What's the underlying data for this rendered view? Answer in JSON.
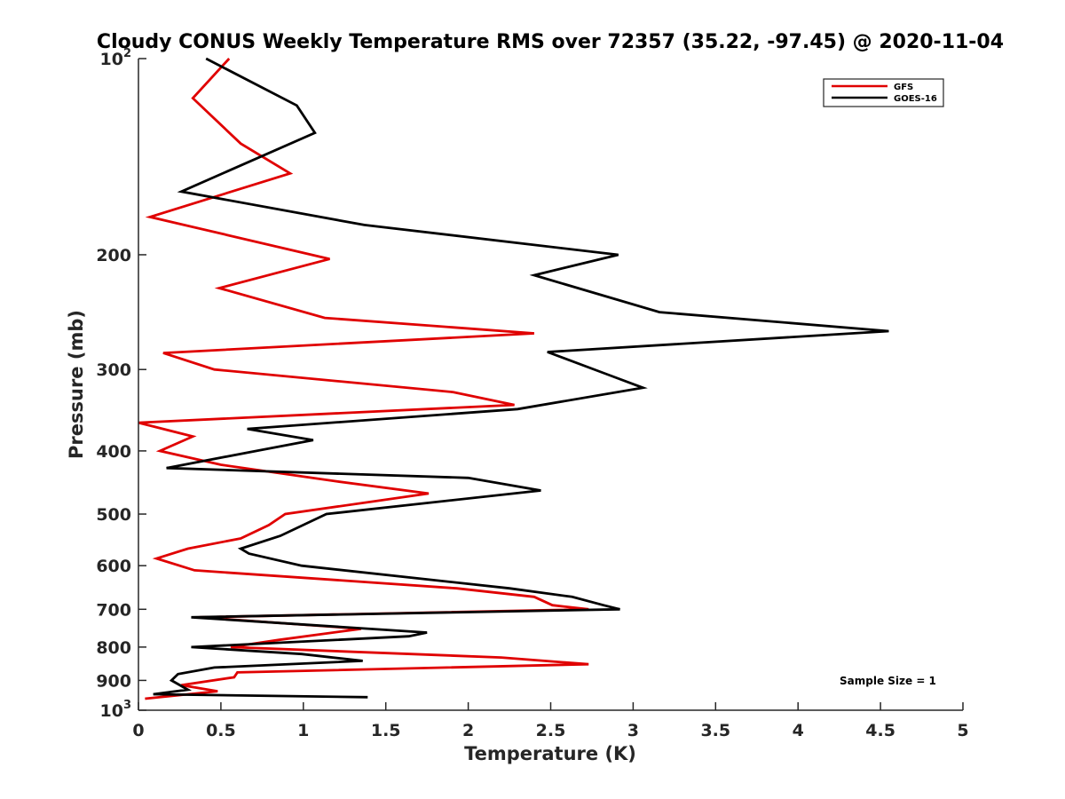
{
  "chart_data": {
    "type": "line",
    "title": "Cloudy CONUS Weekly Temperature RMS over 72357 (35.22, -97.45) @ 2020-11-04",
    "xlabel": "Temperature (K)",
    "ylabel": "Pressure (mb)",
    "xlim": [
      0,
      5
    ],
    "ylim": [
      100,
      1000
    ],
    "yscale": "log",
    "y_reversed": true,
    "x_ticks": [
      "0",
      "0.5",
      "1",
      "1.5",
      "2",
      "2.5",
      "3",
      "3.5",
      "4",
      "4.5",
      "5"
    ],
    "y_ticks": [
      {
        "value": 100,
        "base": "10",
        "exp": "2"
      },
      {
        "value": 200,
        "label": "200"
      },
      {
        "value": 300,
        "label": "300"
      },
      {
        "value": 400,
        "label": "400"
      },
      {
        "value": 500,
        "label": "500"
      },
      {
        "value": 600,
        "label": "600"
      },
      {
        "value": 700,
        "label": "700"
      },
      {
        "value": 800,
        "label": "800"
      },
      {
        "value": 900,
        "label": "900"
      },
      {
        "value": 1000,
        "base": "10",
        "exp": "3"
      }
    ],
    "grid": false,
    "legend_position": "top-right",
    "annotation": "Sample Size = 1",
    "series": [
      {
        "name": "GFS",
        "color": "#e00000",
        "points": [
          [
            0.55,
            100
          ],
          [
            0.33,
            115
          ],
          [
            0.62,
            135
          ],
          [
            0.92,
            150
          ],
          [
            0.07,
            175
          ],
          [
            1.16,
            203
          ],
          [
            0.49,
            225
          ],
          [
            1.13,
            250
          ],
          [
            2.4,
            264
          ],
          [
            0.15,
            283
          ],
          [
            0.46,
            300
          ],
          [
            1.91,
            325
          ],
          [
            2.28,
            340
          ],
          [
            0.0,
            362
          ],
          [
            0.33,
            380
          ],
          [
            0.13,
            400
          ],
          [
            0.5,
            420
          ],
          [
            1.19,
            445
          ],
          [
            1.76,
            465
          ],
          [
            0.89,
            500
          ],
          [
            0.79,
            520
          ],
          [
            0.62,
            545
          ],
          [
            0.3,
            565
          ],
          [
            0.11,
            585
          ],
          [
            0.34,
            610
          ],
          [
            1.93,
            650
          ],
          [
            2.4,
            670
          ],
          [
            2.51,
            690
          ],
          [
            2.73,
            700
          ],
          [
            0.37,
            720
          ],
          [
            1.35,
            750
          ],
          [
            0.85,
            780
          ],
          [
            0.56,
            800
          ],
          [
            2.2,
            830
          ],
          [
            2.73,
            850
          ],
          [
            0.6,
            875
          ],
          [
            0.58,
            890
          ],
          [
            0.26,
            915
          ],
          [
            0.48,
            935
          ],
          [
            0.04,
            960
          ]
        ]
      },
      {
        "name": "GOES-16",
        "color": "#000000",
        "points": [
          [
            0.41,
            100
          ],
          [
            0.96,
            118
          ],
          [
            1.07,
            130
          ],
          [
            0.26,
            160
          ],
          [
            1.37,
            180
          ],
          [
            2.91,
            200
          ],
          [
            2.4,
            215
          ],
          [
            3.16,
            245
          ],
          [
            4.55,
            262
          ],
          [
            2.48,
            282
          ],
          [
            2.84,
            305
          ],
          [
            3.06,
            320
          ],
          [
            2.3,
            345
          ],
          [
            0.66,
            370
          ],
          [
            1.06,
            385
          ],
          [
            0.17,
            425
          ],
          [
            2.0,
            440
          ],
          [
            2.44,
            460
          ],
          [
            1.14,
            500
          ],
          [
            0.86,
            540
          ],
          [
            0.62,
            565
          ],
          [
            0.67,
            575
          ],
          [
            0.99,
            600
          ],
          [
            2.25,
            650
          ],
          [
            2.63,
            670
          ],
          [
            2.82,
            690
          ],
          [
            2.92,
            700
          ],
          [
            0.32,
            720
          ],
          [
            1.75,
            760
          ],
          [
            1.64,
            770
          ],
          [
            0.32,
            800
          ],
          [
            0.99,
            820
          ],
          [
            1.36,
            840
          ],
          [
            0.46,
            860
          ],
          [
            0.24,
            880
          ],
          [
            0.2,
            900
          ],
          [
            0.3,
            930
          ],
          [
            0.09,
            945
          ],
          [
            1.39,
            955
          ]
        ]
      }
    ]
  }
}
